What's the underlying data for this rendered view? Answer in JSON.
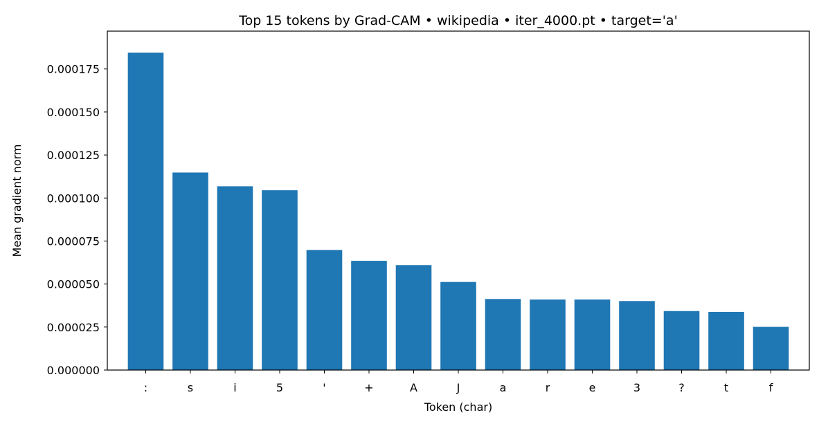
{
  "chart_data": {
    "type": "bar",
    "title": "Top 15 tokens by Grad-CAM • wikipedia • iter_4000.pt • target='a'",
    "xlabel": "Token (char)",
    "ylabel": "Mean gradient norm",
    "categories": [
      ":",
      "s",
      "i",
      "5",
      "'",
      "+",
      "A",
      "J",
      "a",
      "r",
      "e",
      "3",
      "?",
      "t",
      "f"
    ],
    "values": [
      0.0001845,
      0.0001148,
      0.0001068,
      0.0001045,
      6.98e-05,
      6.35e-05,
      6.1e-05,
      5.12e-05,
      4.13e-05,
      4.1e-05,
      4.1e-05,
      4.01e-05,
      3.43e-05,
      3.38e-05,
      2.51e-05
    ],
    "ylim": [
      0,
      0.000197
    ],
    "yticks": [
      0.0,
      2.5e-05,
      5e-05,
      7.5e-05,
      0.0001,
      0.000125,
      0.00015,
      0.000175
    ],
    "ytick_labels": [
      "0.000000",
      "0.000025",
      "0.000050",
      "0.000075",
      "0.000100",
      "0.000125",
      "0.000150",
      "0.000175"
    ],
    "bar_color": "#1f77b4",
    "grid": false,
    "legend": "none"
  }
}
